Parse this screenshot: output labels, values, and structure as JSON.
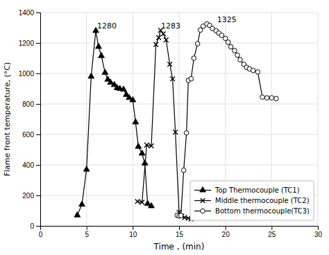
{
  "chart_data": {
    "type": "line",
    "xlabel": "Time , (min)",
    "ylabel": "Flame front temperature, (°C)",
    "series": [
      {
        "name": "Top Thermocouple (TC1)",
        "color": "#000000",
        "marker": "triangle",
        "x": [
          4.0,
          4.5,
          5.0,
          5.5,
          6.0,
          6.3,
          6.6,
          7.0,
          7.3,
          7.6,
          8.0,
          8.3,
          8.6,
          9.0,
          9.3,
          9.6,
          10.0,
          10.3,
          10.6,
          11.0,
          11.3,
          11.6,
          12.0
        ],
        "values": [
          70,
          140,
          370,
          980,
          1280,
          1175,
          1115,
          1005,
          960,
          940,
          925,
          905,
          900,
          895,
          860,
          840,
          825,
          680,
          520,
          475,
          410,
          145,
          130
        ]
      },
      {
        "name": "Middle thermocouple (TC2)",
        "color": "#000000",
        "marker": "x",
        "x": [
          10.5,
          11.0,
          11.5,
          12.0,
          12.5,
          12.8,
          13.0,
          13.3,
          13.6,
          14.0,
          14.3,
          14.6,
          15.0,
          15.3,
          15.6,
          16.0,
          16.3
        ],
        "values": [
          160,
          155,
          530,
          525,
          1190,
          1235,
          1283,
          1260,
          1220,
          1060,
          965,
          615,
          90,
          65,
          55,
          50,
          45
        ]
      },
      {
        "name": "Bottom thermocouple(TC3)",
        "color": "#000000",
        "marker": "circle",
        "x": [
          14.8,
          15.0,
          15.2,
          15.5,
          15.8,
          16.0,
          16.3,
          16.6,
          17.0,
          17.3,
          17.6,
          18.0,
          18.3,
          18.6,
          19.0,
          19.3,
          19.6,
          20.0,
          20.3,
          20.6,
          21.0,
          21.3,
          21.6,
          22.0,
          22.3,
          22.6,
          23.0,
          23.5,
          24.0,
          24.5,
          25.0,
          25.5
        ],
        "values": [
          70,
          65,
          68,
          365,
          610,
          955,
          965,
          1100,
          1195,
          1285,
          1310,
          1325,
          1315,
          1295,
          1280,
          1265,
          1250,
          1230,
          1205,
          1175,
          1150,
          1120,
          1090,
          1060,
          1040,
          1030,
          1020,
          1010,
          845,
          840,
          840,
          835
        ]
      }
    ],
    "annotations": [
      {
        "text": "1280",
        "x": 6.15,
        "y": 1295
      },
      {
        "text": "1283",
        "x": 13.05,
        "y": 1295
      },
      {
        "text": "1325",
        "x": 19.1,
        "y": 1338
      }
    ],
    "xlim": [
      0,
      30
    ],
    "ylim": [
      0,
      1400
    ],
    "xticks": [
      0,
      5,
      10,
      15,
      20,
      25,
      30
    ],
    "yticks": [
      0,
      200,
      400,
      600,
      800,
      1000,
      1200,
      1400
    ],
    "grid": true,
    "legend": "lower right"
  }
}
